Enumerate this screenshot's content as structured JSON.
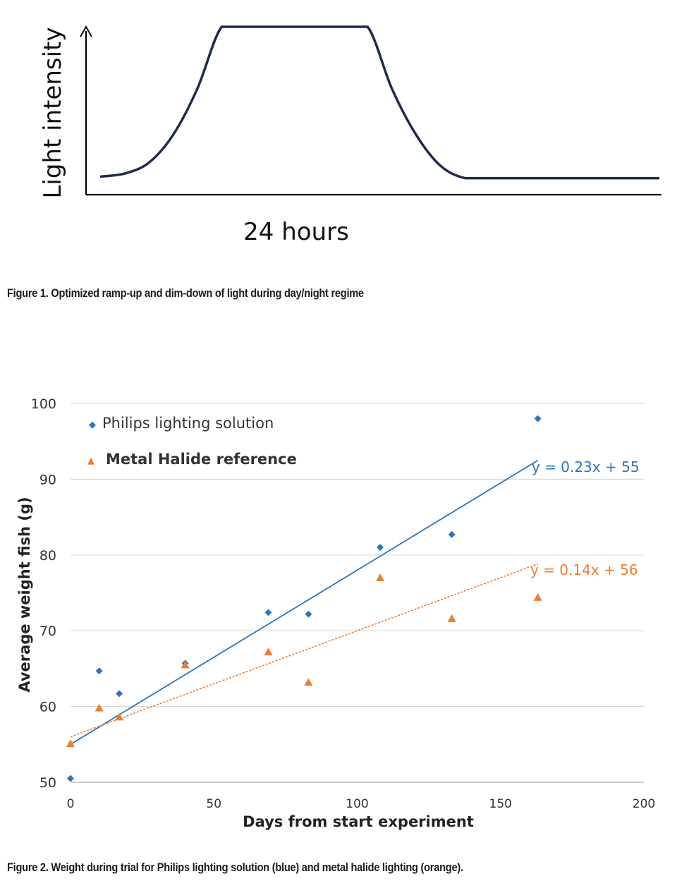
{
  "figure1": {
    "caption": "Figure 1. Optimized ramp-up and dim-down of light during day/night regime",
    "chart_data": {
      "type": "line",
      "title": "",
      "ylabel": "Light intensity",
      "xlabel": "24 hours",
      "series": [
        {
          "values": [
            0.03,
            0.05,
            0.12,
            0.3,
            0.6,
            1.0,
            1.0,
            1.0,
            1.0,
            1.0,
            1.0,
            1.0,
            0.6,
            0.3,
            0.1,
            0.02,
            0.02,
            0.02,
            0.02,
            0.02,
            0.02,
            0.02,
            0.02,
            0.02
          ]
        }
      ],
      "grid": false,
      "legend": "none"
    }
  },
  "figure2": {
    "caption": "Figure 2. Weight during trial for Philips lighting solution (blue) and metal halide lighting (orange).",
    "colors": {
      "blue": "#2e75b6",
      "orange": "#ed7d31"
    },
    "chart_data": {
      "type": "scatter",
      "title": "",
      "xlabel": "Days from start experiment",
      "ylabel": "Average weight fish (g)",
      "xlim": [
        0,
        200
      ],
      "ylim": [
        50,
        100
      ],
      "xticks": [
        0,
        50,
        100,
        150,
        200
      ],
      "yticks": [
        50,
        60,
        70,
        80,
        90,
        100
      ],
      "grid": true,
      "legend": "top-left",
      "series": [
        {
          "name": "Philips lighting solution",
          "marker": "diamond",
          "color": "#2e75b6",
          "x": [
            0,
            10,
            17,
            40,
            69,
            83,
            108,
            133,
            163
          ],
          "y": [
            50.5,
            64.7,
            61.7,
            65.7,
            72.4,
            72.2,
            81.0,
            82.7,
            98.0
          ],
          "trendline": {
            "slope": 0.23,
            "intercept": 55,
            "label": "y = 0.23x + 55",
            "x_range": [
              0,
              163
            ]
          }
        },
        {
          "name": "Metal Halide reference",
          "marker": "triangle",
          "color": "#ed7d31",
          "x": [
            0,
            10,
            17,
            40,
            69,
            83,
            108,
            133,
            163
          ],
          "y": [
            55.1,
            59.8,
            58.6,
            65.5,
            67.2,
            63.2,
            77.0,
            71.6,
            74.4
          ],
          "trendline": {
            "slope": 0.14,
            "intercept": 56,
            "label": "y = 0.14x + 56",
            "x_range": [
              0,
              163
            ]
          }
        }
      ]
    }
  }
}
